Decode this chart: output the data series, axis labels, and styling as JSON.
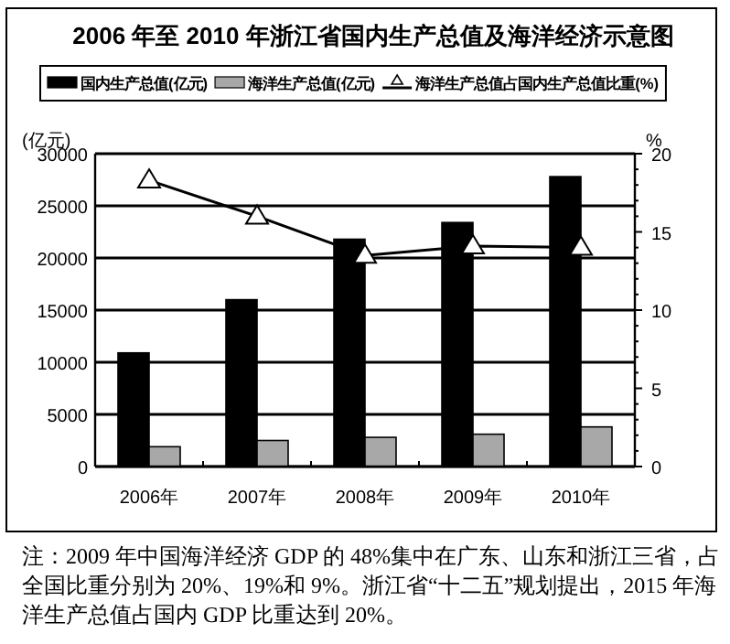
{
  "chart_data": {
    "type": "bar",
    "title": "2006 年至 2010 年浙江省国内生产总值及海洋经济示意图",
    "ylabel": "(亿元)",
    "y2label": "%",
    "categories": [
      "2006年",
      "2007年",
      "2008年",
      "2009年",
      "2010年"
    ],
    "series": [
      {
        "name": "国内生产总值(亿元)",
        "color": "#000000",
        "values": [
          10900,
          16000,
          21800,
          23400,
          27800
        ]
      },
      {
        "name": "海洋生产总值(亿元)",
        "color": "#a8a8a8",
        "values": [
          1900,
          2500,
          2800,
          3100,
          3800
        ]
      },
      {
        "name": "海洋生产总值占国内生产总值比重(%)",
        "type": "line",
        "axis": "y2",
        "color": "#000000",
        "marker": "triangle",
        "values": [
          18.3,
          16.0,
          13.5,
          14.1,
          14.0
        ]
      }
    ],
    "ylim": [
      0,
      30000
    ],
    "yticks": [
      0,
      5000,
      10000,
      15000,
      20000,
      25000,
      30000
    ],
    "y2lim": [
      0,
      20
    ],
    "y2ticks": [
      0,
      {
        "value": 1,
        "label": null
      },
      {
        "value": 2,
        "label": null
      },
      {
        "value": 3,
        "label": null
      },
      {
        "value": 4,
        "label": null
      },
      5,
      {
        "value": 6,
        "label": null
      },
      {
        "value": 7,
        "label": null
      },
      {
        "value": 8,
        "label": null
      },
      {
        "value": 9,
        "label": null
      },
      10,
      {
        "value": 11,
        "label": null
      },
      {
        "value": 12,
        "label": null
      },
      {
        "value": 13,
        "label": null
      },
      {
        "value": 14,
        "label": null
      },
      15,
      {
        "value": 16,
        "label": null
      },
      {
        "value": 17,
        "label": null
      },
      {
        "value": 18,
        "label": null
      },
      {
        "value": 19,
        "label": null
      },
      20
    ],
    "grid": "y",
    "legend": "top",
    "annotations": [
      "注：2009 年中国海洋经济 GDP 的 48%集中在广东、山东和浙江三省，占全国比重分别为 20%、19%和 9%。浙江省“十二五”规划提出，2015 年海洋生产总值占国内 GDP 比重达到 20%。"
    ]
  }
}
